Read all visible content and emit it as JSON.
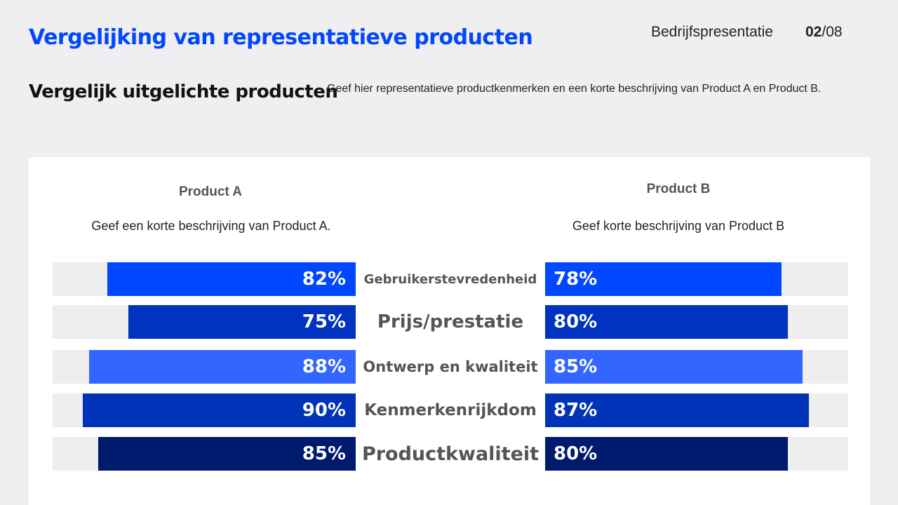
{
  "header": {
    "title": "Vergelijking van representatieve producten",
    "company": "Bedrijfspresentatie",
    "page_current": "02",
    "page_total": "/08"
  },
  "section": {
    "title": "Vergelijk uitgelichte producten",
    "description": "Geef hier representatieve productkenmerken en een korte beschrijving van Product A en Product B."
  },
  "products": {
    "a": {
      "name": "Product A",
      "description": "Geef een korte beschrijving van Product A."
    },
    "b": {
      "name": "Product B",
      "description": "Geef korte beschrijving van Product B"
    }
  },
  "chart_data": {
    "type": "bar",
    "orientation": "horizontal-butterfly",
    "categories": [
      "Gebruikerstevredenheid",
      "Prijs/prestatie",
      "Ontwerp en kwaliteit",
      "Kenmerkenrijkdom",
      "Productkwaliteit"
    ],
    "series": [
      {
        "name": "Product A",
        "values": [
          82,
          75,
          88,
          90,
          85
        ]
      },
      {
        "name": "Product B",
        "values": [
          78,
          80,
          85,
          87,
          80
        ]
      }
    ],
    "labels_a": [
      "82%",
      "75%",
      "88%",
      "90%",
      "85%"
    ],
    "labels_b": [
      "78%",
      "80%",
      "85%",
      "87%",
      "80%"
    ],
    "xlim": [
      0,
      100
    ],
    "colors": [
      "#0047ff",
      "#0033c0",
      "#3366ff",
      "#0033b8",
      "#001a6e"
    ],
    "track_color": "#eeeeef"
  }
}
